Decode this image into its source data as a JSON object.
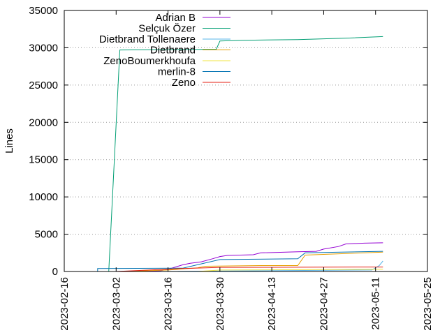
{
  "chart_data": {
    "type": "line",
    "title": "",
    "xlabel": "",
    "ylabel": "Lines",
    "x_type": "date",
    "xlim": [
      "2023-02-16",
      "2023-05-25"
    ],
    "ylim": [
      0,
      35000
    ],
    "x_ticks": [
      "2023-02-16",
      "2023-03-02",
      "2023-03-16",
      "2023-03-30",
      "2023-04-13",
      "2023-04-27",
      "2023-05-11",
      "2023-05-25"
    ],
    "y_ticks": [
      0,
      5000,
      10000,
      15000,
      20000,
      25000,
      30000,
      35000
    ],
    "grid": "horizontal dotted",
    "legend_position": "top-right",
    "series": [
      {
        "name": "Adrian B",
        "color": "#9400d3",
        "points": [
          [
            "2023-03-02",
            0
          ],
          [
            "2023-03-14",
            100
          ],
          [
            "2023-03-16",
            300
          ],
          [
            "2023-03-18",
            600
          ],
          [
            "2023-03-20",
            900
          ],
          [
            "2023-03-22",
            1100
          ],
          [
            "2023-03-25",
            1300
          ],
          [
            "2023-03-28",
            1700
          ],
          [
            "2023-03-30",
            2000
          ],
          [
            "2023-04-01",
            2150
          ],
          [
            "2023-04-08",
            2250
          ],
          [
            "2023-04-10",
            2500
          ],
          [
            "2023-04-20",
            2650
          ],
          [
            "2023-04-25",
            2700
          ],
          [
            "2023-04-27",
            3000
          ],
          [
            "2023-05-01",
            3350
          ],
          [
            "2023-05-03",
            3700
          ],
          [
            "2023-05-08",
            3800
          ],
          [
            "2023-05-13",
            3850
          ]
        ]
      },
      {
        "name": "Selçuk Özer",
        "color": "#009e73",
        "points": [
          [
            "2023-02-28",
            0
          ],
          [
            "2023-03-03",
            29700
          ],
          [
            "2023-03-29",
            29800
          ],
          [
            "2023-03-30",
            30900
          ],
          [
            "2023-04-05",
            31000
          ],
          [
            "2023-04-20",
            31100
          ],
          [
            "2023-04-27",
            31200
          ],
          [
            "2023-05-04",
            31300
          ],
          [
            "2023-05-13",
            31500
          ]
        ]
      },
      {
        "name": "Dietbrand Tollenaere",
        "color": "#56b4e9",
        "points": [
          [
            "2023-03-10",
            0
          ],
          [
            "2023-05-10",
            200
          ],
          [
            "2023-05-12",
            800
          ],
          [
            "2023-05-13",
            1400
          ]
        ]
      },
      {
        "name": "Dietbrand",
        "color": "#e69f00",
        "points": [
          [
            "2023-03-04",
            0
          ],
          [
            "2023-03-16",
            200
          ],
          [
            "2023-03-24",
            500
          ],
          [
            "2023-03-26",
            700
          ],
          [
            "2023-04-10",
            800
          ],
          [
            "2023-04-20",
            800
          ],
          [
            "2023-04-22",
            2200
          ],
          [
            "2023-05-13",
            2600
          ]
        ]
      },
      {
        "name": "ZenoBoumerkhoufa",
        "color": "#f0e442",
        "points": [
          [
            "2023-03-24",
            0
          ],
          [
            "2023-03-30",
            200
          ],
          [
            "2023-05-13",
            300
          ]
        ]
      },
      {
        "name": "merlin-8",
        "color": "#0072b2",
        "points": [
          [
            "2023-02-25",
            0
          ],
          [
            "2023-02-25",
            400
          ],
          [
            "2023-03-20",
            450
          ],
          [
            "2023-03-30",
            1600
          ],
          [
            "2023-04-20",
            1700
          ],
          [
            "2023-04-22",
            2500
          ],
          [
            "2023-05-13",
            2700
          ]
        ]
      },
      {
        "name": "Zeno",
        "color": "#e51e10",
        "points": [
          [
            "2023-03-02",
            0
          ],
          [
            "2023-03-20",
            400
          ],
          [
            "2023-03-30",
            550
          ],
          [
            "2023-05-13",
            600
          ]
        ]
      }
    ]
  }
}
